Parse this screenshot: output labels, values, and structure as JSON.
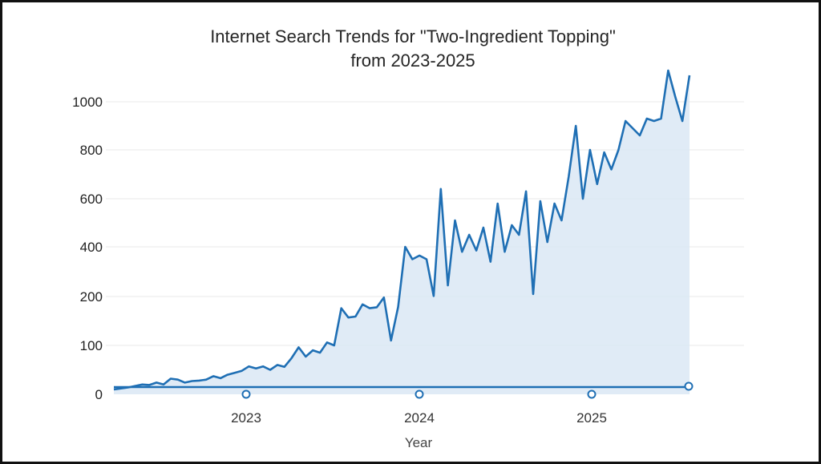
{
  "chart_data": {
    "type": "area",
    "title_line1": "Internet Search Trends for \"Two-Ingredient Topping\"",
    "title_line2": "from 2023-2025",
    "xlabel": "Year",
    "ylabel": "",
    "x_ticks": [
      "2023",
      "2024",
      "2025"
    ],
    "y_ticks": [
      "0",
      "100",
      "200",
      "400",
      "600",
      "800",
      "1000"
    ],
    "grid": true,
    "legend": "none",
    "colors": {
      "line": "#1f6fb4",
      "fill": "#dbe8f5",
      "grid": "#e9e9e9"
    },
    "series": [
      {
        "values": [
          10,
          12,
          14,
          17,
          20,
          19,
          24,
          20,
          32,
          30,
          24,
          27,
          28,
          30,
          37,
          33,
          40,
          44,
          48,
          57,
          53,
          57,
          50,
          60,
          56,
          74,
          96,
          77,
          90,
          85,
          106,
          100,
          176,
          157,
          159,
          184,
          176,
          178,
          198,
          110,
          179,
          400,
          350,
          365,
          350,
          202,
          640,
          245,
          510,
          380,
          450,
          385,
          480,
          340,
          580,
          380,
          490,
          450,
          630,
          210,
          590,
          420,
          580,
          510,
          690,
          900,
          600,
          800,
          660,
          790,
          720,
          800,
          920,
          890,
          860,
          930,
          920,
          930,
          1130,
          1020,
          920,
          1110
        ]
      }
    ],
    "baseline_markers": [
      0,
      0,
      0,
      0
    ]
  }
}
